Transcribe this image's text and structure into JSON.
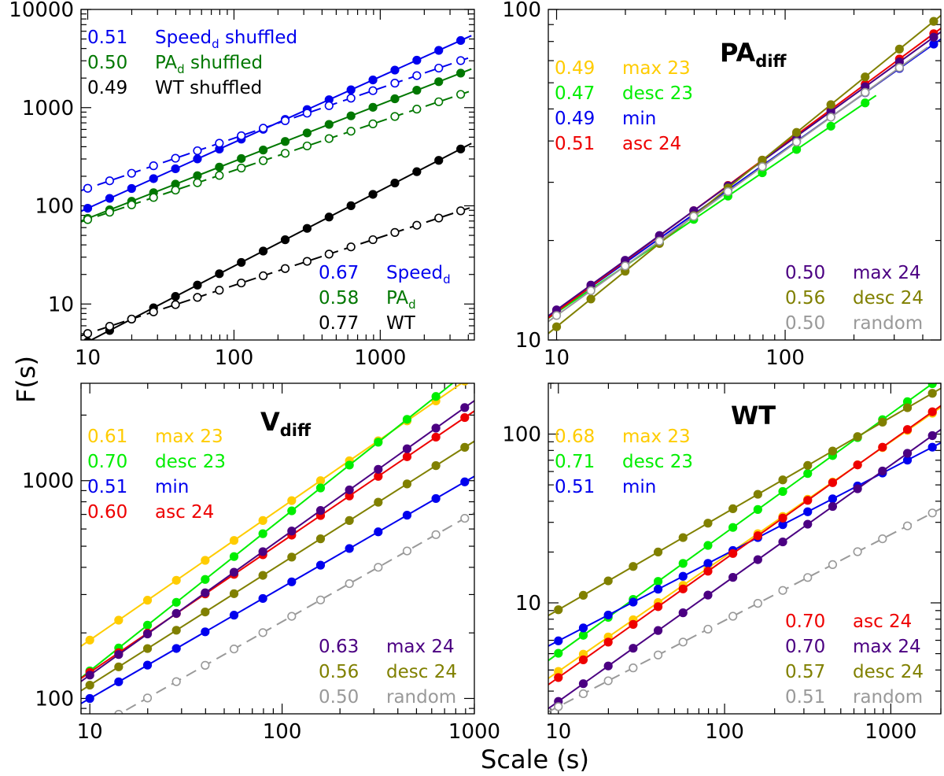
{
  "figure": {
    "xlabel": "Scale (s)",
    "ylabel": "F(s)"
  },
  "chart_data": [
    {
      "id": "p1",
      "type": "scatter",
      "title": "",
      "xscale": "log",
      "yscale": "log",
      "xlim": [
        9,
        4400
      ],
      "ylim": [
        4.3,
        10000
      ],
      "xticks": [
        10,
        100,
        1000
      ],
      "xticklabels": [
        "10",
        "100",
        "1000"
      ],
      "yticks": [
        10,
        100,
        1000,
        10000
      ],
      "yticklabels": [
        "10",
        "100",
        "1000",
        "10000"
      ],
      "series": [
        {
          "name": "Speed_d",
          "color": "#0000ee",
          "fill": true,
          "alpha": 0.67,
          "c": 20.2,
          "xmax": 4200
        },
        {
          "name": "Speed_d shuffled",
          "color": "#0000ee",
          "fill": false,
          "dashed": true,
          "alpha": 0.51,
          "c": 46.6,
          "xmax": 4200
        },
        {
          "name": "PA_d",
          "color": "#007700",
          "fill": true,
          "alpha": 0.58,
          "c": 19.6,
          "xmax": 4200
        },
        {
          "name": "PA_d shuffled",
          "color": "#007700",
          "fill": false,
          "dashed": true,
          "alpha": 0.5,
          "c": 22.9,
          "xmax": 4200
        },
        {
          "name": "WT",
          "color": "#000000",
          "fill": true,
          "alpha": 0.77,
          "c": 0.7,
          "xmax": 4200
        },
        {
          "name": "WT shuffled",
          "color": "#000000",
          "fill": false,
          "dashed": true,
          "alpha": 0.49,
          "c": 1.62,
          "xmax": 4200
        }
      ],
      "legends": [
        {
          "pos": "top-left",
          "entries": [
            {
              "value": "0.51",
              "label": "Speed",
              "sub": "d",
              "suffix": " shuffled",
              "color": "#0000ee"
            },
            {
              "value": "0.50",
              "label": "PA",
              "sub": "d",
              "suffix": " shuffled",
              "color": "#007700"
            },
            {
              "value": "0.49",
              "label": "WT shuffled",
              "color": "#000000"
            }
          ]
        },
        {
          "pos": "bottom-right",
          "entries": [
            {
              "value": "0.67",
              "label": "Speed",
              "sub": "d",
              "color": "#0000ee"
            },
            {
              "value": "0.58",
              "label": "PA",
              "sub": "d",
              "color": "#007700"
            },
            {
              "value": "0.77",
              "label": "WT",
              "color": "#000000"
            }
          ]
        }
      ]
    },
    {
      "id": "p2",
      "type": "scatter",
      "title": "PA",
      "title_sub": "diff",
      "xscale": "log",
      "yscale": "log",
      "xlim": [
        9.2,
        480
      ],
      "ylim": [
        10,
        100
      ],
      "xticks": [
        10,
        100
      ],
      "xticklabels": [
        "10",
        "100"
      ],
      "yticks": [
        10,
        100
      ],
      "yticklabels": [
        "10",
        "100"
      ],
      "series": [
        {
          "name": "max 23",
          "color": "#ffcc00",
          "fill": true,
          "alpha": 0.49,
          "c": 3.95,
          "xmax": 360
        },
        {
          "name": "desc 23",
          "color": "#00ee00",
          "fill": true,
          "alpha": 0.47,
          "c": 4.1,
          "xmax": 250
        },
        {
          "name": "min",
          "color": "#0000ee",
          "fill": true,
          "alpha": 0.49,
          "c": 3.95,
          "xmax": 480
        },
        {
          "name": "asc 24",
          "color": "#ee0000",
          "fill": true,
          "alpha": 0.51,
          "c": 3.76,
          "xmax": 480
        },
        {
          "name": "max 24",
          "color": "#4b0082",
          "fill": true,
          "alpha": 0.5,
          "c": 3.9,
          "xmax": 480
        },
        {
          "name": "desc 24",
          "color": "#808000",
          "fill": true,
          "alpha": 0.56,
          "c": 3.02,
          "xmax": 480
        },
        {
          "name": "random",
          "color": "#999999",
          "fill": false,
          "alpha": 0.5,
          "c": 3.75,
          "xmax": 420
        }
      ],
      "legends": [
        {
          "pos": "top-left",
          "entries": [
            {
              "value": "0.49",
              "label": "max 23",
              "color": "#ffcc00"
            },
            {
              "value": "0.47",
              "label": "desc 23",
              "color": "#00ee00"
            },
            {
              "value": "0.49",
              "label": "min",
              "color": "#0000ee"
            },
            {
              "value": "0.51",
              "label": "asc 24",
              "color": "#ee0000"
            }
          ]
        },
        {
          "pos": "bottom-right",
          "entries": [
            {
              "value": "0.50",
              "label": "max 24",
              "color": "#4b0082"
            },
            {
              "value": "0.56",
              "label": "desc 24",
              "color": "#808000"
            },
            {
              "value": "0.50",
              "label": "random",
              "color": "#999999"
            }
          ]
        }
      ]
    },
    {
      "id": "p3",
      "type": "scatter",
      "title": "V",
      "title_sub": "diff",
      "xscale": "log",
      "yscale": "log",
      "xlim": [
        9,
        1000
      ],
      "ylim": [
        85,
        2800
      ],
      "xticks": [
        10,
        100,
        1000
      ],
      "xticklabels": [
        "10",
        "100",
        "1000"
      ],
      "yticks": [
        100,
        1000
      ],
      "yticklabels": [
        "100",
        "1000"
      ],
      "series": [
        {
          "name": "max 23",
          "color": "#ffcc00",
          "fill": true,
          "alpha": 0.61,
          "c": 45.5,
          "xmax": 1000
        },
        {
          "name": "desc 23",
          "color": "#00ee00",
          "fill": true,
          "alpha": 0.7,
          "c": 26.7,
          "xmax": 1000
        },
        {
          "name": "min",
          "color": "#0000ee",
          "fill": true,
          "alpha": 0.51,
          "c": 30.9,
          "xmax": 1000
        },
        {
          "name": "asc 24",
          "color": "#ee0000",
          "fill": true,
          "alpha": 0.6,
          "c": 33.1,
          "xmax": 1000
        },
        {
          "name": "max 24",
          "color": "#4b0082",
          "fill": true,
          "alpha": 0.63,
          "c": 30.0,
          "xmax": 1000
        },
        {
          "name": "desc 24",
          "color": "#808000",
          "fill": true,
          "alpha": 0.56,
          "c": 31.7,
          "xmax": 1000
        },
        {
          "name": "random",
          "color": "#999999",
          "fill": false,
          "dashed": true,
          "alpha": 0.5,
          "c": 22.5,
          "xmax": 1000
        }
      ],
      "legends": [
        {
          "pos": "top-left",
          "entries": [
            {
              "value": "0.61",
              "label": "max 23",
              "color": "#ffcc00"
            },
            {
              "value": "0.70",
              "label": "desc 23",
              "color": "#00ee00"
            },
            {
              "value": "0.51",
              "label": "min",
              "color": "#0000ee"
            },
            {
              "value": "0.60",
              "label": "asc 24",
              "color": "#ee0000"
            }
          ]
        },
        {
          "pos": "bottom-right",
          "entries": [
            {
              "value": "0.63",
              "label": "max 24",
              "color": "#4b0082"
            },
            {
              "value": "0.56",
              "label": "desc 24",
              "color": "#808000"
            },
            {
              "value": "0.50",
              "label": "random",
              "color": "#999999"
            }
          ]
        }
      ]
    },
    {
      "id": "p4",
      "type": "scatter",
      "title": "WT",
      "title_sub": "",
      "xscale": "log",
      "yscale": "log",
      "xlim": [
        8.7,
        2000
      ],
      "ylim": [
        2.2,
        200
      ],
      "xticks": [
        10,
        100,
        1000
      ],
      "xticklabels": [
        "10",
        "100",
        "1000"
      ],
      "yticks": [
        10,
        100
      ],
      "yticklabels": [
        "10",
        "100"
      ],
      "series": [
        {
          "name": "max 23",
          "color": "#ffcc00",
          "fill": true,
          "alpha": 0.68,
          "c": 0.82,
          "xmax": 2000
        },
        {
          "name": "desc 23",
          "color": "#00ee00",
          "fill": true,
          "alpha": 0.71,
          "c": 0.98,
          "xmax": 2000
        },
        {
          "name": "min",
          "color": "#0000ee",
          "fill": true,
          "alpha": 0.51,
          "c": 1.84,
          "xmax": 2000
        },
        {
          "name": "asc 24",
          "color": "#ee0000",
          "fill": true,
          "alpha": 0.7,
          "c": 0.72,
          "xmax": 2000
        },
        {
          "name": "max 24",
          "color": "#4b0082",
          "fill": true,
          "alpha": 0.7,
          "c": 0.52,
          "xmax": 2000
        },
        {
          "name": "desc 24",
          "color": "#808000",
          "fill": true,
          "alpha": 0.57,
          "c": 2.45,
          "xmax": 2000
        },
        {
          "name": "random",
          "color": "#999999",
          "fill": false,
          "dashed": true,
          "alpha": 0.51,
          "c": 0.75,
          "xmax": 2000
        }
      ],
      "legends": [
        {
          "pos": "top-left",
          "entries": [
            {
              "value": "0.68",
              "label": "max 23",
              "color": "#ffcc00"
            },
            {
              "value": "0.71",
              "label": "desc 23",
              "color": "#00ee00"
            },
            {
              "value": "0.51",
              "label": "min",
              "color": "#0000ee"
            }
          ]
        },
        {
          "pos": "bottom-right",
          "entries": [
            {
              "value": "0.70",
              "label": "asc 24",
              "color": "#ee0000"
            },
            {
              "value": "0.70",
              "label": "max 24",
              "color": "#4b0082"
            },
            {
              "value": "0.57",
              "label": "desc 24",
              "color": "#808000"
            },
            {
              "value": "0.51",
              "label": "random",
              "color": "#999999"
            }
          ]
        }
      ]
    }
  ]
}
